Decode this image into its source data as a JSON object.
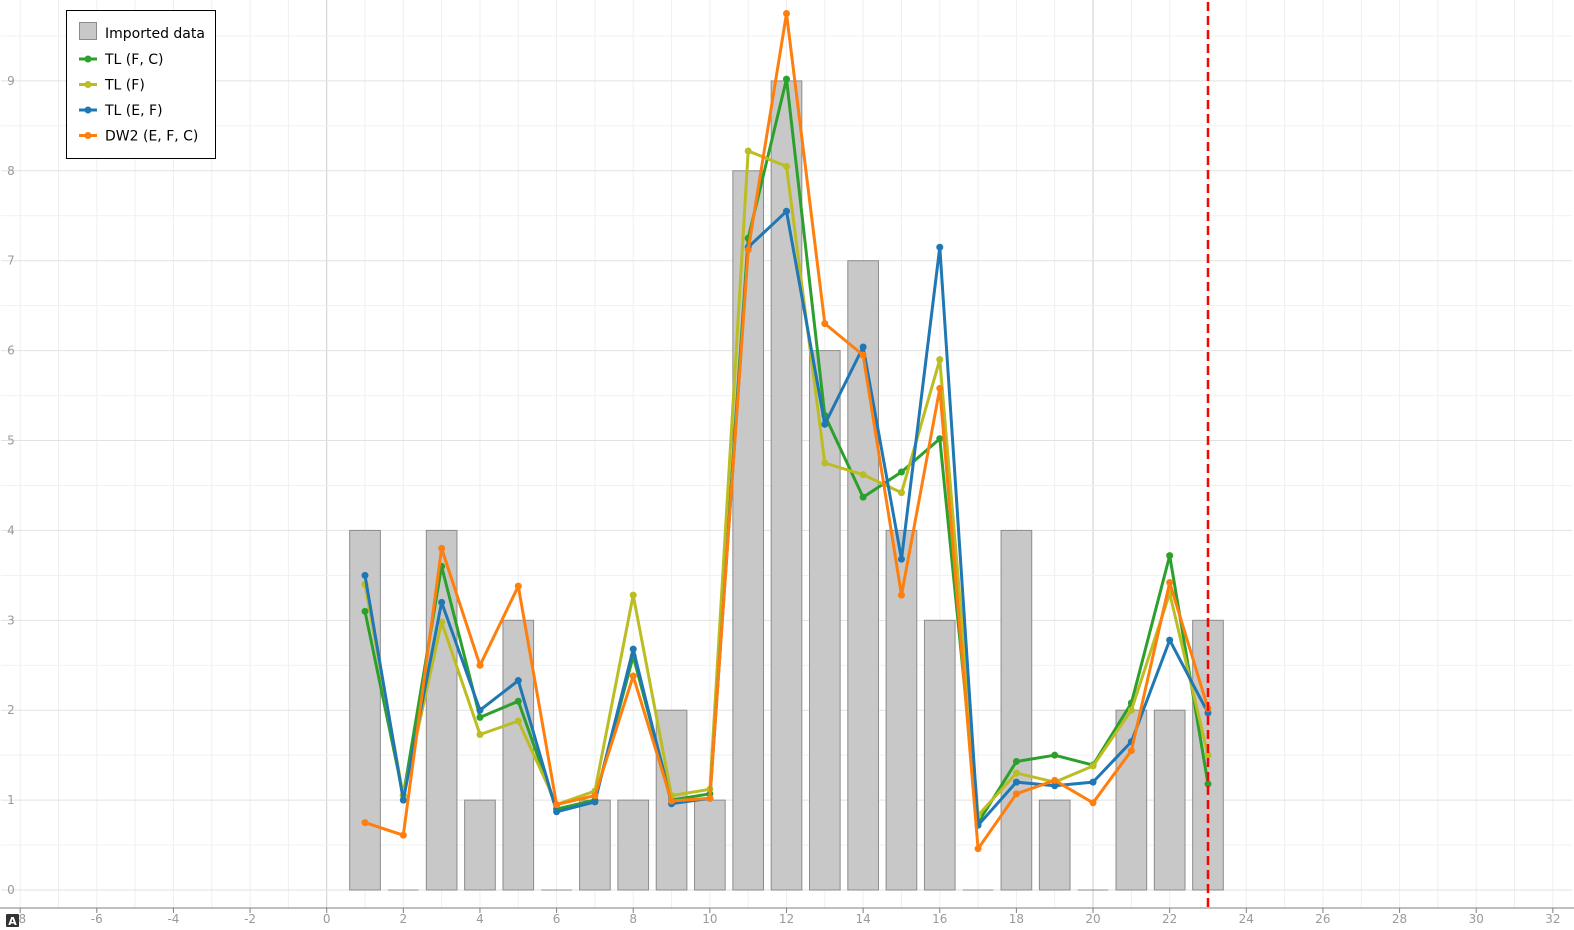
{
  "chart_data": {
    "type": "bar",
    "xlim": [
      -8.5,
      32.5
    ],
    "ylim": [
      -0.2,
      9.9
    ],
    "x_ticks": [
      -8,
      -6,
      -4,
      -2,
      0,
      2,
      4,
      6,
      8,
      10,
      12,
      14,
      16,
      18,
      20,
      22,
      24,
      26,
      28,
      30,
      32
    ],
    "x_tick_labels": [
      "-8",
      "-6",
      "-4",
      "-2",
      "0",
      "2",
      "4",
      "6",
      "8",
      "10",
      "12",
      "14",
      "16",
      "18",
      "20",
      "22",
      "24",
      "26",
      "28",
      "30",
      "32"
    ],
    "y_ticks": [
      0,
      1,
      2,
      3,
      4,
      5,
      6,
      7,
      8,
      9
    ],
    "y_tick_labels": [
      "0",
      "1",
      "2",
      "3",
      "4",
      "5",
      "6",
      "7",
      "8",
      "9"
    ],
    "grid": true,
    "legend_position": "top-left",
    "bars": {
      "name": "Imported data",
      "color": "#c8c8c8",
      "x": [
        1,
        2,
        3,
        4,
        5,
        6,
        7,
        8,
        9,
        10,
        11,
        12,
        13,
        14,
        15,
        16,
        17,
        18,
        19,
        20,
        21,
        22,
        23
      ],
      "values": [
        4,
        0,
        4,
        1,
        3,
        0,
        1,
        1,
        2,
        1,
        8,
        9,
        6,
        7,
        4,
        3,
        0,
        4,
        1,
        0,
        2,
        2,
        3
      ]
    },
    "series": [
      {
        "name": "TL (F, C)",
        "color": "#2ca02c",
        "x": [
          1,
          2,
          3,
          4,
          5,
          6,
          7,
          8,
          9,
          10,
          11,
          12,
          13,
          14,
          15,
          16,
          17,
          18,
          19,
          20,
          21,
          22,
          23
        ],
        "values": [
          3.1,
          1.05,
          3.6,
          1.92,
          2.1,
          0.9,
          1.0,
          2.6,
          1.0,
          1.07,
          7.25,
          9.02,
          5.28,
          4.37,
          4.65,
          5.02,
          0.75,
          1.43,
          1.5,
          1.39,
          2.08,
          3.72,
          1.18
        ]
      },
      {
        "name": "TL (F)",
        "color": "#bcbd22",
        "x": [
          1,
          2,
          3,
          4,
          5,
          6,
          7,
          8,
          9,
          10,
          11,
          12,
          13,
          14,
          15,
          16,
          17,
          18,
          19,
          20,
          21,
          22,
          23
        ],
        "values": [
          3.4,
          1.05,
          2.98,
          1.73,
          1.88,
          0.95,
          1.1,
          3.28,
          1.05,
          1.12,
          8.22,
          8.05,
          4.75,
          4.62,
          4.42,
          5.9,
          0.83,
          1.3,
          1.2,
          1.38,
          2.0,
          3.3,
          1.5
        ]
      },
      {
        "name": "TL (E, F)",
        "color": "#1f77b4",
        "x": [
          1,
          2,
          3,
          4,
          5,
          6,
          7,
          8,
          9,
          10,
          11,
          12,
          13,
          14,
          15,
          16,
          17,
          18,
          19,
          20,
          21,
          22,
          23
        ],
        "values": [
          3.5,
          1.0,
          3.2,
          2.0,
          2.33,
          0.87,
          0.98,
          2.68,
          0.96,
          1.02,
          7.15,
          7.55,
          5.18,
          6.04,
          3.68,
          7.15,
          0.72,
          1.2,
          1.16,
          1.2,
          1.65,
          2.78,
          1.97
        ]
      },
      {
        "name": "DW2 (E, F, C)",
        "color": "#ff7f0e",
        "x": [
          1,
          2,
          3,
          4,
          5,
          6,
          7,
          8,
          9,
          10,
          11,
          12,
          13,
          14,
          15,
          16,
          17,
          18,
          19,
          20,
          21,
          22,
          23
        ],
        "values": [
          0.75,
          0.61,
          3.8,
          2.5,
          3.38,
          0.95,
          1.05,
          2.38,
          0.99,
          1.02,
          7.12,
          9.75,
          6.3,
          5.95,
          3.28,
          5.58,
          0.46,
          1.07,
          1.22,
          0.97,
          1.55,
          3.42,
          2.02
        ]
      }
    ],
    "reference_line": {
      "x": 23,
      "color": "#ff0000",
      "style": "dashed"
    }
  },
  "corner_icon": "auto-scale-icon"
}
